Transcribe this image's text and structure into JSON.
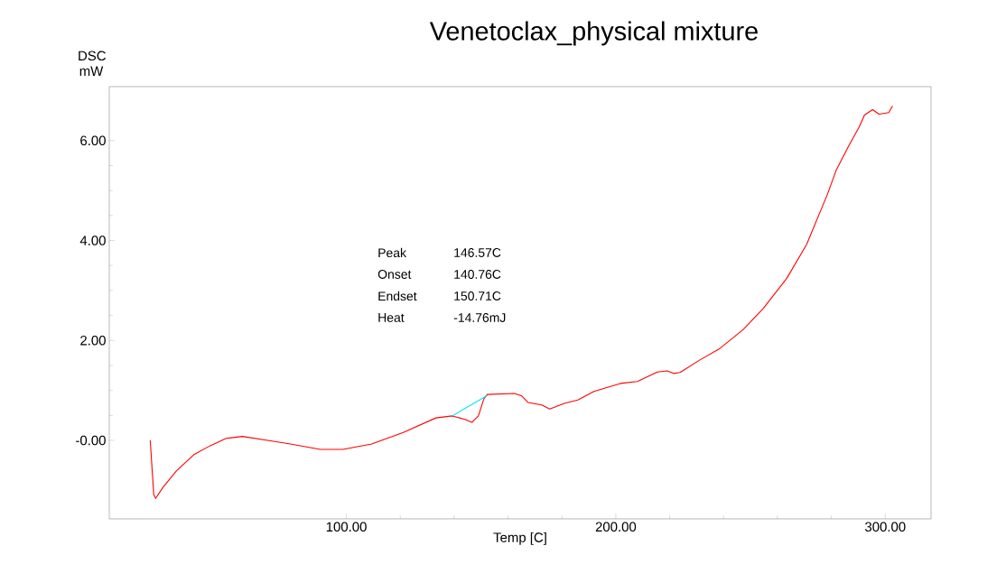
{
  "chart_data": {
    "type": "line",
    "title": "Venetoclax_physical mixture",
    "xlabel": "Temp  [C]",
    "ylabel": "DSC mW",
    "xlim": [
      12,
      317
    ],
    "ylim": [
      -1.57,
      7.08
    ],
    "xticks": [
      {
        "value": 100,
        "label": "100.00"
      },
      {
        "value": 200,
        "label": "200.00"
      },
      {
        "value": 300,
        "label": "300.00"
      }
    ],
    "yticks": [
      {
        "value": 0,
        "label": "-0.00"
      },
      {
        "value": 2,
        "label": "2.00"
      },
      {
        "value": 4,
        "label": "4.00"
      },
      {
        "value": 6,
        "label": "6.00"
      }
    ],
    "grid": false,
    "legend": false,
    "marker": "none",
    "line_style": "solid",
    "annotations": [
      "Peak",
      "146.57C",
      "Onset",
      "140.76C",
      "Endset",
      "150.71C",
      "Heat",
      "-14.76mJ"
    ],
    "series": [
      {
        "color": "#ff0000",
        "x": [
          27.2,
          28.5,
          29.2,
          31.9,
          36.9,
          43.3,
          49.3,
          55.4,
          61.4,
          70.8,
          79.2,
          90.3,
          98.7,
          109.4,
          121.1,
          133.2,
          139.3,
          144,
          146.6,
          149,
          151,
          152.3,
          162.4,
          165.1,
          167.4,
          172.5,
          175.5,
          180.9,
          185.9,
          191.9,
          201.7,
          208,
          215.4,
          219.1,
          221.5,
          223.8,
          231.2,
          238.6,
          247.3,
          254.7,
          263.4,
          270.8,
          278.5,
          281.9,
          286.6,
          290.3,
          292.3,
          295.3,
          297.7,
          301.3,
          302.7
        ],
        "values": [
          0,
          -1.08,
          -1.16,
          -0.94,
          -0.61,
          -0.29,
          -0.11,
          0.04,
          0.08,
          0,
          -0.07,
          -0.18,
          -0.18,
          -0.07,
          0.16,
          0.45,
          0.49,
          0.42,
          0.36,
          0.49,
          0.83,
          0.92,
          0.94,
          0.89,
          0.76,
          0.71,
          0.63,
          0.74,
          0.81,
          0.98,
          1.14,
          1.18,
          1.37,
          1.39,
          1.34,
          1.36,
          1.61,
          1.84,
          2.22,
          2.64,
          3.24,
          3.92,
          4.92,
          5.42,
          5.91,
          6.27,
          6.51,
          6.62,
          6.53,
          6.56,
          6.69
        ]
      },
      {
        "color": "#00e5ee",
        "x": [
          139.3,
          152.3
        ],
        "values": [
          0.49,
          0.9
        ]
      }
    ]
  }
}
